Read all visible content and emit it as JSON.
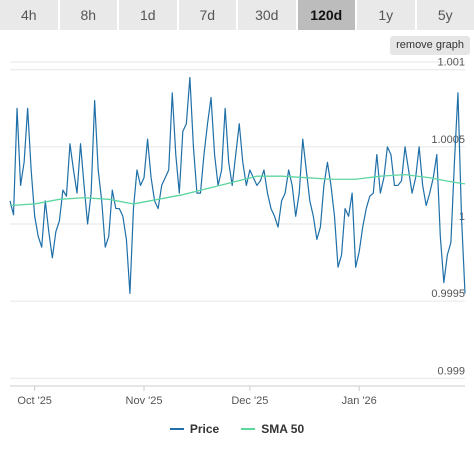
{
  "tabs": [
    {
      "label": "4h",
      "active": false
    },
    {
      "label": "8h",
      "active": false
    },
    {
      "label": "1d",
      "active": false
    },
    {
      "label": "7d",
      "active": false
    },
    {
      "label": "30d",
      "active": false
    },
    {
      "label": "120d",
      "active": true
    },
    {
      "label": "1y",
      "active": false
    },
    {
      "label": "5y",
      "active": false
    }
  ],
  "remove_graph_label": "remove graph",
  "colors": {
    "price": "#1f6fa8",
    "sma": "#5ed6a0",
    "grid": "#e6e6e6",
    "axis_text": "#555555"
  },
  "chart_data": {
    "type": "line",
    "title": "",
    "xlabel": "",
    "ylabel": "",
    "ylim": [
      0.99895,
      1.00105
    ],
    "xlim": [
      "2025-09-24",
      "2026-01-31"
    ],
    "yticks": [
      0.999,
      0.9995,
      1,
      1.0005,
      1.001
    ],
    "ytick_labels": [
      "0.999",
      "0.9995",
      "1",
      "1.0005",
      "1.001"
    ],
    "xticks": [
      "2025-10-01",
      "2025-11-01",
      "2025-12-01",
      "2026-01-01"
    ],
    "xtick_labels": [
      "Oct '25",
      "Nov '25",
      "Dec '25",
      "Jan '26"
    ],
    "grid": true,
    "legend": "bottom",
    "series": [
      {
        "name": "Price",
        "x": [
          "2025-09-24",
          "2025-09-25",
          "2025-09-26",
          "2025-09-27",
          "2025-09-28",
          "2025-09-29",
          "2025-09-30",
          "2025-10-01",
          "2025-10-02",
          "2025-10-03",
          "2025-10-04",
          "2025-10-05",
          "2025-10-06",
          "2025-10-07",
          "2025-10-08",
          "2025-10-09",
          "2025-10-10",
          "2025-10-11",
          "2025-10-12",
          "2025-10-13",
          "2025-10-14",
          "2025-10-15",
          "2025-10-16",
          "2025-10-17",
          "2025-10-18",
          "2025-10-19",
          "2025-10-20",
          "2025-10-21",
          "2025-10-22",
          "2025-10-23",
          "2025-10-24",
          "2025-10-25",
          "2025-10-26",
          "2025-10-27",
          "2025-10-28",
          "2025-10-29",
          "2025-10-30",
          "2025-10-31",
          "2025-11-01",
          "2025-11-02",
          "2025-11-03",
          "2025-11-04",
          "2025-11-05",
          "2025-11-06",
          "2025-11-07",
          "2025-11-08",
          "2025-11-09",
          "2025-11-10",
          "2025-11-11",
          "2025-11-12",
          "2025-11-13",
          "2025-11-14",
          "2025-11-15",
          "2025-11-16",
          "2025-11-17",
          "2025-11-18",
          "2025-11-19",
          "2025-11-20",
          "2025-11-21",
          "2025-11-22",
          "2025-11-23",
          "2025-11-24",
          "2025-11-25",
          "2025-11-26",
          "2025-11-27",
          "2025-11-28",
          "2025-11-29",
          "2025-11-30",
          "2025-12-01",
          "2025-12-02",
          "2025-12-03",
          "2025-12-04",
          "2025-12-05",
          "2025-12-06",
          "2025-12-07",
          "2025-12-08",
          "2025-12-09",
          "2025-12-10",
          "2025-12-11",
          "2025-12-12",
          "2025-12-13",
          "2025-12-14",
          "2025-12-15",
          "2025-12-16",
          "2025-12-17",
          "2025-12-18",
          "2025-12-19",
          "2025-12-20",
          "2025-12-21",
          "2025-12-22",
          "2025-12-23",
          "2025-12-24",
          "2025-12-25",
          "2025-12-26",
          "2025-12-27",
          "2025-12-28",
          "2025-12-29",
          "2025-12-30",
          "2025-12-31",
          "2026-01-01",
          "2026-01-02",
          "2026-01-03",
          "2026-01-04",
          "2026-01-05",
          "2026-01-06",
          "2026-01-07",
          "2026-01-08",
          "2026-01-09",
          "2026-01-10",
          "2026-01-11",
          "2026-01-12",
          "2026-01-13",
          "2026-01-14",
          "2026-01-15",
          "2026-01-16",
          "2026-01-17",
          "2026-01-18",
          "2026-01-19",
          "2026-01-20",
          "2026-01-21",
          "2026-01-22",
          "2026-01-23",
          "2026-01-24",
          "2026-01-25",
          "2026-01-26",
          "2026-01-27",
          "2026-01-28",
          "2026-01-29",
          "2026-01-30",
          "2026-01-31"
        ],
        "y": [
          1.00015,
          1.00006,
          1.00075,
          1.00025,
          1.0004,
          1.00075,
          1.00035,
          1.00005,
          0.99992,
          0.99985,
          1.00015,
          0.99995,
          0.99978,
          0.99995,
          1.00002,
          1.00022,
          1.00018,
          1.00052,
          1.00035,
          1.0002,
          1.00052,
          1.00025,
          1.0,
          1.0002,
          1.0008,
          1.00035,
          1.00015,
          0.99985,
          0.99992,
          1.00022,
          1.0001,
          1.0001,
          1.00005,
          0.9999,
          0.99955,
          1.0001,
          1.00035,
          1.00025,
          1.0003,
          1.00055,
          1.0003,
          1.00015,
          1.0001,
          1.00025,
          1.0003,
          1.00035,
          1.00085,
          1.00045,
          1.0002,
          1.0006,
          1.00065,
          1.00095,
          1.0005,
          1.0002,
          1.0002,
          1.00045,
          1.00065,
          1.00082,
          1.00045,
          1.00025,
          1.00035,
          1.00075,
          1.0004,
          1.00025,
          1.00045,
          1.00065,
          1.0004,
          1.00025,
          1.00035,
          1.0003,
          1.00025,
          1.00028,
          1.00035,
          1.0002,
          1.0001,
          1.00005,
          0.99998,
          1.00015,
          1.0002,
          1.00035,
          1.00025,
          1.00005,
          1.0002,
          1.00055,
          1.00035,
          1.00015,
          1.00005,
          0.9999,
          0.99998,
          1.00025,
          1.0004,
          1.00025,
          1.00005,
          0.99972,
          0.9998,
          1.0001,
          1.00005,
          1.0002,
          0.99972,
          0.99982,
          0.99998,
          1.0001,
          1.00018,
          1.0002,
          1.00045,
          1.0002,
          1.0003,
          1.0005,
          1.00045,
          1.00025,
          1.00025,
          1.00028,
          1.0005,
          1.00035,
          1.0002,
          1.0003,
          1.0005,
          1.00025,
          1.00012,
          1.0002,
          1.0003,
          1.00045,
          0.99992,
          0.99962,
          0.9998,
          0.99988,
          1.0004,
          1.00085,
          1.00005,
          0.99955
        ],
        "visible": true
      },
      {
        "name": "SMA 50",
        "x": [
          "2025-09-24",
          "2025-10-01",
          "2025-10-08",
          "2025-10-15",
          "2025-10-22",
          "2025-10-29",
          "2025-11-05",
          "2025-11-12",
          "2025-11-19",
          "2025-11-26",
          "2025-12-03",
          "2025-12-10",
          "2025-12-17",
          "2025-12-24",
          "2025-12-31",
          "2026-01-07",
          "2026-01-14",
          "2026-01-21",
          "2026-01-28",
          "2026-01-31"
        ],
        "y": [
          1.00012,
          1.00013,
          1.00016,
          1.00017,
          1.00016,
          1.00013,
          1.00016,
          1.00019,
          1.00023,
          1.00027,
          1.00031,
          1.00031,
          1.0003,
          1.00029,
          1.00029,
          1.00031,
          1.00032,
          1.0003,
          1.00027,
          1.00026
        ],
        "visible": true
      }
    ]
  }
}
